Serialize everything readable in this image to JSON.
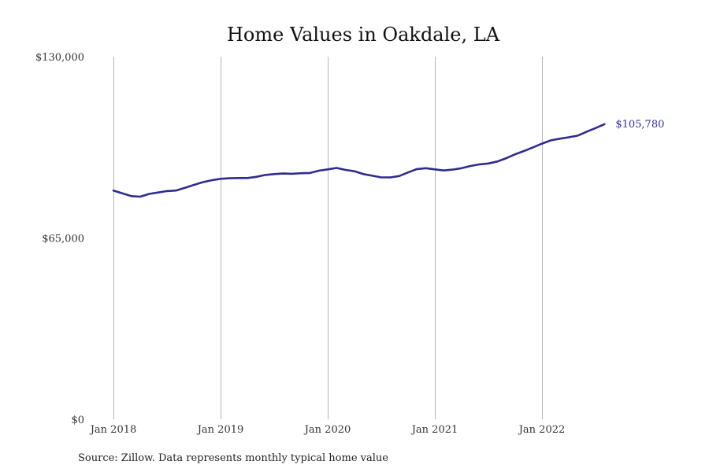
{
  "chart_data": {
    "type": "line",
    "title": "Home Values in Oakdale, LA",
    "xlabel": "",
    "ylabel": "",
    "ylim": [
      0,
      130000
    ],
    "y_ticks": [
      0,
      65000,
      130000
    ],
    "y_tick_labels": [
      "$0",
      "$65,000",
      "$130,000"
    ],
    "x_ticks": [
      "2018-01",
      "2019-01",
      "2020-01",
      "2021-01",
      "2022-01"
    ],
    "x_tick_labels": [
      "Jan 2018",
      "Jan 2019",
      "Jan 2020",
      "Jan 2021",
      "Jan 2022"
    ],
    "grid": "vertical",
    "series": [
      {
        "color": "#2e2d8c",
        "x": [
          "2018-01",
          "2018-02",
          "2018-03",
          "2018-04",
          "2018-05",
          "2018-06",
          "2018-07",
          "2018-08",
          "2018-09",
          "2018-10",
          "2018-11",
          "2018-12",
          "2019-01",
          "2019-02",
          "2019-03",
          "2019-04",
          "2019-05",
          "2019-06",
          "2019-07",
          "2019-08",
          "2019-09",
          "2019-10",
          "2019-11",
          "2019-12",
          "2020-01",
          "2020-02",
          "2020-03",
          "2020-04",
          "2020-05",
          "2020-06",
          "2020-07",
          "2020-08",
          "2020-09",
          "2020-10",
          "2020-11",
          "2020-12",
          "2021-01",
          "2021-02",
          "2021-03",
          "2021-04",
          "2021-05",
          "2021-06",
          "2021-07",
          "2021-08",
          "2021-09",
          "2021-10",
          "2021-11",
          "2021-12",
          "2022-01",
          "2022-02",
          "2022-03",
          "2022-04",
          "2022-05",
          "2022-06",
          "2022-07",
          "2022-08"
        ],
        "values": [
          82000,
          81000,
          80000,
          79800,
          80800,
          81300,
          81800,
          82000,
          83000,
          84000,
          85000,
          85700,
          86200,
          86400,
          86500,
          86500,
          86900,
          87600,
          87900,
          88100,
          88000,
          88200,
          88300,
          89100,
          89600,
          90100,
          89400,
          88900,
          87900,
          87300,
          86700,
          86700,
          87200,
          88500,
          89700,
          90000,
          89600,
          89200,
          89500,
          90000,
          90800,
          91400,
          91700,
          92400,
          93600,
          95000,
          96200,
          97500,
          98800,
          100000,
          100600,
          101100,
          101700,
          103100,
          104400,
          105780
        ]
      }
    ],
    "end_label": "$105,780"
  },
  "source_note": "Source: Zillow. Data represents monthly typical home value"
}
